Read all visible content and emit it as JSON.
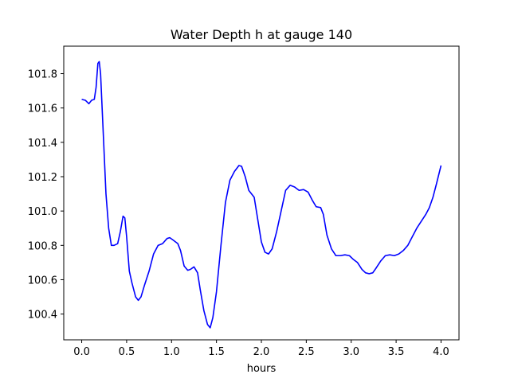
{
  "chart_data": {
    "type": "line",
    "title": "Water Depth h at gauge 140",
    "xlabel": "hours",
    "ylabel": "",
    "xlim": [
      -0.2,
      4.2
    ],
    "ylim": [
      100.25,
      101.96
    ],
    "xticks": [
      0.0,
      0.5,
      1.0,
      1.5,
      2.0,
      2.5,
      3.0,
      3.5,
      4.0
    ],
    "xtick_labels": [
      "0.0",
      "0.5",
      "1.0",
      "1.5",
      "2.0",
      "2.5",
      "3.0",
      "3.5",
      "4.0"
    ],
    "yticks": [
      100.4,
      100.6,
      100.8,
      101.0,
      101.2,
      101.4,
      101.6,
      101.8
    ],
    "ytick_labels": [
      "100.4",
      "100.6",
      "100.8",
      "101.0",
      "101.2",
      "101.4",
      "101.6",
      "101.8"
    ],
    "grid": false,
    "series": [
      {
        "color": "#0000ff",
        "points": [
          [
            0.0,
            101.65
          ],
          [
            0.04,
            101.645
          ],
          [
            0.08,
            101.625
          ],
          [
            0.11,
            101.645
          ],
          [
            0.14,
            101.65
          ],
          [
            0.16,
            101.72
          ],
          [
            0.18,
            101.86
          ],
          [
            0.195,
            101.87
          ],
          [
            0.21,
            101.8
          ],
          [
            0.24,
            101.45
          ],
          [
            0.27,
            101.1
          ],
          [
            0.3,
            100.9
          ],
          [
            0.33,
            100.8
          ],
          [
            0.36,
            100.8
          ],
          [
            0.4,
            100.81
          ],
          [
            0.43,
            100.88
          ],
          [
            0.46,
            100.97
          ],
          [
            0.48,
            100.96
          ],
          [
            0.5,
            100.85
          ],
          [
            0.53,
            100.65
          ],
          [
            0.56,
            100.58
          ],
          [
            0.6,
            100.5
          ],
          [
            0.63,
            100.48
          ],
          [
            0.66,
            100.5
          ],
          [
            0.7,
            100.57
          ],
          [
            0.75,
            100.65
          ],
          [
            0.8,
            100.75
          ],
          [
            0.85,
            100.8
          ],
          [
            0.9,
            100.81
          ],
          [
            0.95,
            100.84
          ],
          [
            0.98,
            100.845
          ],
          [
            1.02,
            100.83
          ],
          [
            1.07,
            100.81
          ],
          [
            1.1,
            100.77
          ],
          [
            1.14,
            100.68
          ],
          [
            1.18,
            100.655
          ],
          [
            1.21,
            100.66
          ],
          [
            1.25,
            100.675
          ],
          [
            1.29,
            100.64
          ],
          [
            1.32,
            100.54
          ],
          [
            1.36,
            100.42
          ],
          [
            1.4,
            100.34
          ],
          [
            1.43,
            100.32
          ],
          [
            1.46,
            100.38
          ],
          [
            1.5,
            100.53
          ],
          [
            1.55,
            100.8
          ],
          [
            1.6,
            101.05
          ],
          [
            1.65,
            101.18
          ],
          [
            1.7,
            101.23
          ],
          [
            1.75,
            101.265
          ],
          [
            1.78,
            101.26
          ],
          [
            1.82,
            101.2
          ],
          [
            1.86,
            101.12
          ],
          [
            1.92,
            101.08
          ],
          [
            1.96,
            100.95
          ],
          [
            2.0,
            100.82
          ],
          [
            2.04,
            100.76
          ],
          [
            2.08,
            100.75
          ],
          [
            2.12,
            100.78
          ],
          [
            2.17,
            100.88
          ],
          [
            2.22,
            101.0
          ],
          [
            2.27,
            101.12
          ],
          [
            2.32,
            101.15
          ],
          [
            2.37,
            101.14
          ],
          [
            2.42,
            101.12
          ],
          [
            2.47,
            101.125
          ],
          [
            2.52,
            101.11
          ],
          [
            2.57,
            101.06
          ],
          [
            2.61,
            101.025
          ],
          [
            2.66,
            101.02
          ],
          [
            2.69,
            100.98
          ],
          [
            2.73,
            100.86
          ],
          [
            2.78,
            100.78
          ],
          [
            2.83,
            100.74
          ],
          [
            2.88,
            100.74
          ],
          [
            2.93,
            100.745
          ],
          [
            2.98,
            100.74
          ],
          [
            3.02,
            100.72
          ],
          [
            3.07,
            100.7
          ],
          [
            3.12,
            100.66
          ],
          [
            3.16,
            100.64
          ],
          [
            3.2,
            100.635
          ],
          [
            3.24,
            100.64
          ],
          [
            3.28,
            100.67
          ],
          [
            3.33,
            100.71
          ],
          [
            3.38,
            100.74
          ],
          [
            3.43,
            100.745
          ],
          [
            3.48,
            100.74
          ],
          [
            3.53,
            100.75
          ],
          [
            3.58,
            100.77
          ],
          [
            3.63,
            100.8
          ],
          [
            3.68,
            100.85
          ],
          [
            3.73,
            100.9
          ],
          [
            3.78,
            100.94
          ],
          [
            3.83,
            100.98
          ],
          [
            3.87,
            101.02
          ],
          [
            3.91,
            101.08
          ],
          [
            3.95,
            101.16
          ],
          [
            4.0,
            101.265
          ]
        ]
      }
    ]
  }
}
